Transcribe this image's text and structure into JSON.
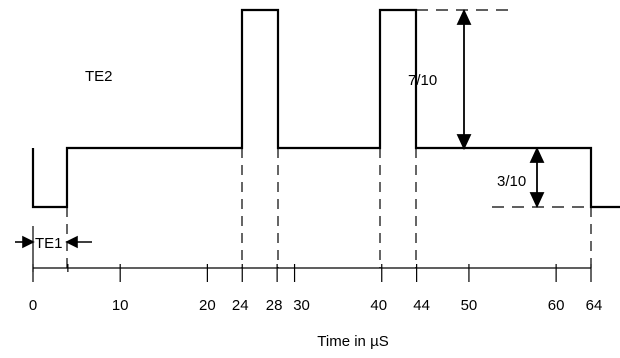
{
  "labels": {
    "signal_name": "TE2",
    "pulse_width": "TE1",
    "upper_level": "7/10",
    "lower_level": "3/10",
    "axis_title": "Time in µS"
  },
  "axis": {
    "min": 0,
    "max": 64,
    "major_ticks": [
      0,
      10,
      20,
      24,
      28,
      30,
      40,
      44,
      50,
      60,
      64
    ],
    "minor_ticks": [
      4
    ]
  },
  "waveform": {
    "levels": {
      "sync": 0,
      "blank": 0.3,
      "peak": 1.0
    },
    "segments": [
      {
        "from": 0,
        "to": 4,
        "level": "sync"
      },
      {
        "from": 4,
        "to": 24,
        "level": "blank"
      },
      {
        "from": 24,
        "to": 28,
        "level": "peak"
      },
      {
        "from": 28,
        "to": 40,
        "level": "blank"
      },
      {
        "from": 40,
        "to": 44,
        "level": "peak"
      },
      {
        "from": 44,
        "to": 64,
        "level": "blank"
      }
    ]
  },
  "colors": {
    "stroke": "#000000",
    "background": "#ffffff"
  }
}
